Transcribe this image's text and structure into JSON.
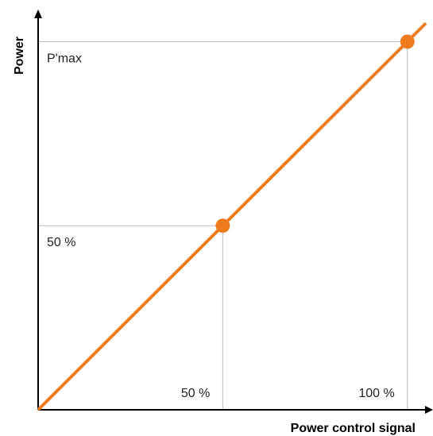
{
  "chart_data": {
    "type": "line",
    "title": "",
    "xlabel": "Power control signal",
    "ylabel": "Power",
    "xlim": [
      0,
      105
    ],
    "ylim": [
      0,
      107
    ],
    "x_tick_labels": [
      {
        "value": 50,
        "label": "50 %"
      },
      {
        "value": 100,
        "label": "100 %"
      }
    ],
    "y_tick_labels": [
      {
        "value": 50,
        "label": "50 %"
      },
      {
        "value": 100,
        "label": "P'max"
      }
    ],
    "series": [
      {
        "x": [
          0,
          105
        ],
        "y": [
          0,
          105
        ]
      }
    ],
    "highlight_points": [
      {
        "x": 50,
        "y": 50
      },
      {
        "x": 100,
        "y": 100
      }
    ],
    "grid": false,
    "colors": {
      "line": "#ee7b1e",
      "guide": "#bbbbbb",
      "axis": "#000000"
    }
  }
}
